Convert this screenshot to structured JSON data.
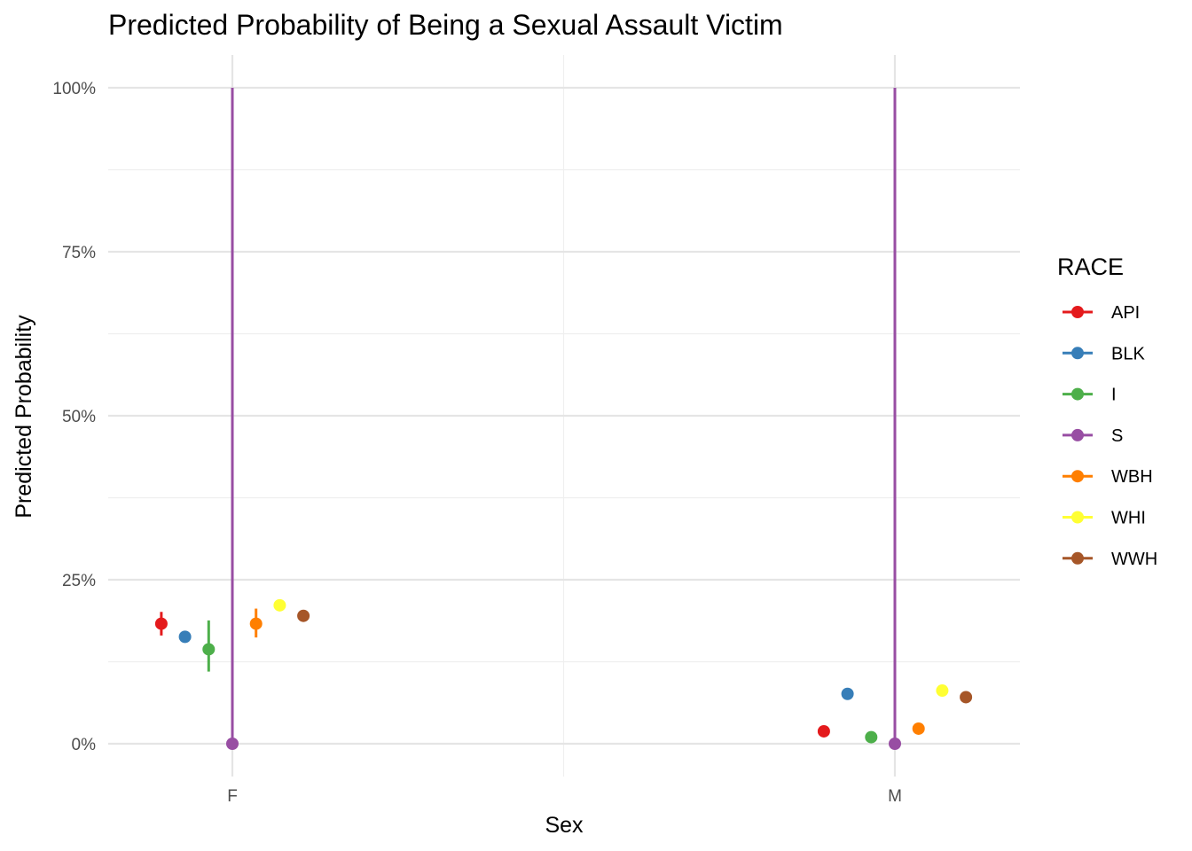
{
  "chart_data": {
    "type": "scatter",
    "title": "Predicted Probability of Being a Sexual Assault Victim",
    "xlabel": "Sex",
    "ylabel": "Predicted Probability",
    "categories": [
      "F",
      "M"
    ],
    "ylim": [
      -0.1,
      1.03
    ],
    "y_ticks": [
      0,
      0.25,
      0.5,
      0.75,
      1.0
    ],
    "y_tick_labels": [
      "0%",
      "25%",
      "50%",
      "75%",
      "100%"
    ],
    "grid": true,
    "legend": {
      "title": "RACE",
      "position": "right"
    },
    "series": [
      {
        "name": "API",
        "color": "#e41a1c",
        "values": [
          0.183,
          0.019
        ],
        "lower": [
          0.165,
          0.019
        ],
        "upper": [
          0.201,
          0.019
        ]
      },
      {
        "name": "BLK",
        "color": "#377eb8",
        "values": [
          0.163,
          0.076
        ],
        "lower": [
          0.163,
          0.076
        ],
        "upper": [
          0.163,
          0.076
        ]
      },
      {
        "name": "I",
        "color": "#4daf4a",
        "values": [
          0.144,
          0.01
        ],
        "lower": [
          0.11,
          0.01
        ],
        "upper": [
          0.188,
          0.01
        ]
      },
      {
        "name": "S",
        "color": "#984ea3",
        "values": [
          0.0,
          0.0
        ],
        "lower": [
          0.0,
          0.0
        ],
        "upper": [
          1.0,
          1.0
        ]
      },
      {
        "name": "WBH",
        "color": "#ff7f00",
        "values": [
          0.183,
          0.023
        ],
        "lower": [
          0.162,
          0.023
        ],
        "upper": [
          0.206,
          0.023
        ]
      },
      {
        "name": "WHI",
        "color": "#ffff33",
        "values": [
          0.211,
          0.081
        ],
        "lower": [
          0.211,
          0.081
        ],
        "upper": [
          0.211,
          0.081
        ]
      },
      {
        "name": "WWH",
        "color": "#a65628",
        "values": [
          0.195,
          0.071
        ],
        "lower": [
          0.195,
          0.071
        ],
        "upper": [
          0.195,
          0.071
        ]
      }
    ]
  }
}
